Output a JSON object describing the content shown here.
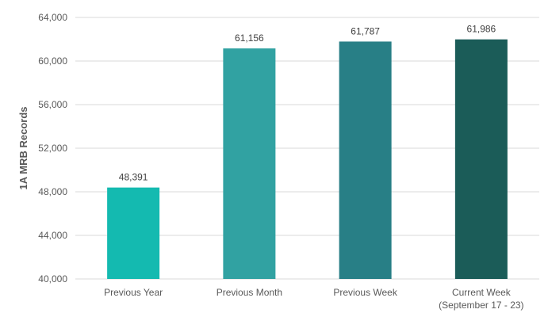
{
  "chart_data": {
    "type": "bar",
    "title": "",
    "xlabel": "",
    "ylabel": "1A MRB Records",
    "ylim": [
      40000,
      64000
    ],
    "yticks": [
      "40,000",
      "44,000",
      "48,000",
      "52,000",
      "56,000",
      "60,000",
      "64,000"
    ],
    "ytick_values": [
      40000,
      44000,
      48000,
      52000,
      56000,
      60000,
      64000
    ],
    "grid": true,
    "legend": "none",
    "categories": [
      [
        "Previous Year"
      ],
      [
        "Previous Month"
      ],
      [
        "Previous Week"
      ],
      [
        "Current Week",
        "(September 17 - 23)"
      ]
    ],
    "values": [
      48391,
      61156,
      61787,
      61986
    ],
    "value_labels": [
      "48,391",
      "61,156",
      "61,787",
      "61,986"
    ],
    "colors": [
      "#14bab0",
      "#31a2a2",
      "#287f86",
      "#1b5c58"
    ]
  }
}
